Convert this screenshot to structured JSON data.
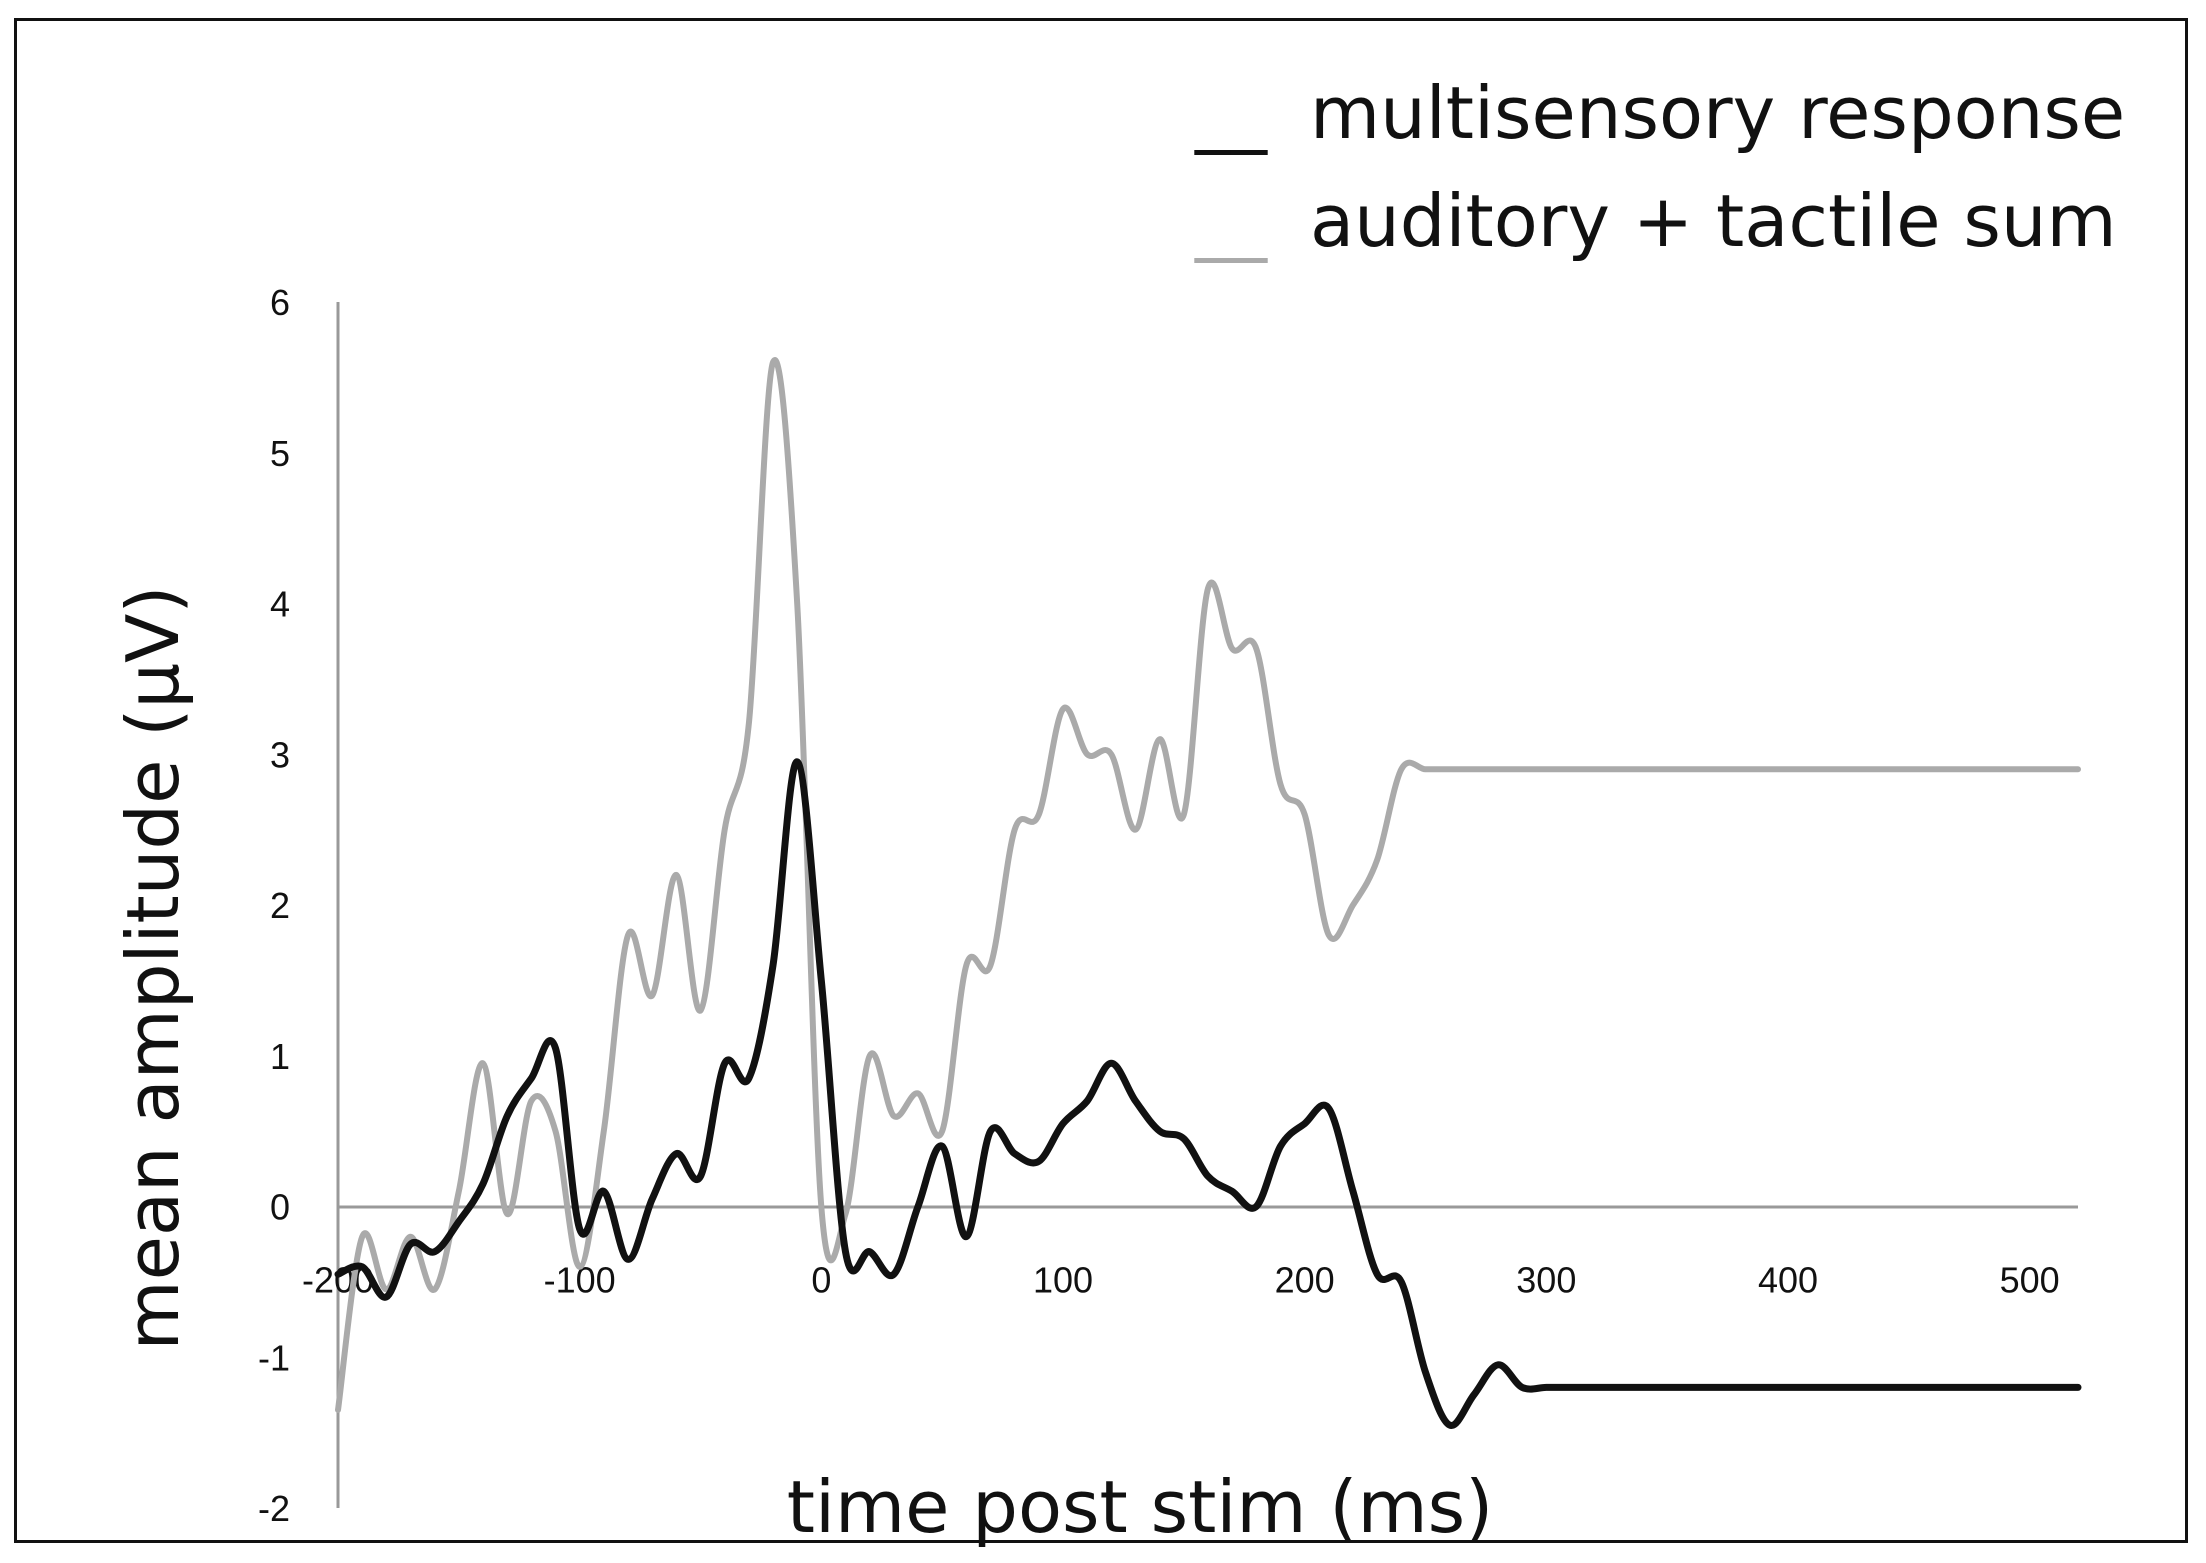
{
  "chart_data": {
    "type": "line",
    "title": "",
    "xlabel": "time post stim (ms)",
    "ylabel": "mean amplitude (μV)",
    "xlim": [
      -200,
      520
    ],
    "ylim": [
      -2,
      6
    ],
    "x_ticks": [
      "-200",
      "-100",
      "0",
      "100",
      "200",
      "300",
      "400",
      "500"
    ],
    "y_ticks": [
      "6",
      "5",
      "4",
      "3",
      "2",
      "1",
      "0",
      "-1",
      "-2"
    ],
    "grid": false,
    "legend_position": "top-right",
    "series": [
      {
        "name": "multisensory response",
        "color": "#111111",
        "marker": "__",
        "x": [
          -200,
          -190,
          -180,
          -170,
          -160,
          -150,
          -140,
          -130,
          -120,
          -110,
          -100,
          -90,
          -80,
          -70,
          -60,
          -50,
          -40,
          -30,
          -20,
          -10,
          0,
          10,
          20,
          30,
          40,
          50,
          60,
          70,
          80,
          90,
          100,
          110,
          120,
          130,
          140,
          150,
          160,
          170,
          180,
          190,
          200,
          210,
          220,
          230,
          240,
          250,
          260,
          270,
          280,
          290,
          300,
          310,
          320,
          330,
          340,
          350,
          360,
          370,
          380,
          390,
          400,
          410,
          420,
          430,
          440,
          450,
          460,
          470,
          480,
          490,
          500,
          510,
          520
        ],
        "values": [
          -0.45,
          -0.4,
          -0.6,
          -0.25,
          -0.3,
          -0.1,
          0.15,
          0.6,
          0.85,
          1.05,
          -0.15,
          0.1,
          -0.35,
          0.05,
          0.35,
          0.2,
          0.95,
          0.85,
          1.6,
          2.95,
          1.5,
          -0.3,
          -0.3,
          -0.45,
          0.0,
          0.4,
          -0.2,
          0.5,
          0.35,
          0.3,
          0.55,
          0.7,
          0.95,
          0.7,
          0.5,
          0.45,
          0.2,
          0.1,
          0.0,
          0.4,
          0.55,
          0.65,
          0.1,
          -0.45,
          -0.5,
          -1.1,
          -1.45,
          -1.25,
          -1.05,
          -1.2,
          -1.2,
          -1.2,
          -1.2,
          -1.2,
          -1.2,
          -1.2,
          -1.2,
          -1.2,
          -1.2,
          -1.2,
          -1.2,
          -1.2,
          -1.2,
          -1.2,
          -1.2,
          -1.2,
          -1.2,
          -1.2,
          -1.2,
          -1.2,
          -1.2,
          -1.2,
          -1.2
        ]
      },
      {
        "name": "auditory + tactile sum",
        "color": "#aaaaaa",
        "marker": "__",
        "x": [
          -200,
          -190,
          -180,
          -170,
          -160,
          -150,
          -140,
          -130,
          -120,
          -110,
          -100,
          -90,
          -80,
          -70,
          -60,
          -50,
          -40,
          -30,
          -20,
          -10,
          0,
          10,
          20,
          30,
          40,
          50,
          60,
          70,
          80,
          90,
          100,
          110,
          120,
          130,
          140,
          150,
          160,
          170,
          180,
          190,
          200,
          210,
          220,
          230,
          240,
          250,
          260,
          270,
          280,
          290,
          300,
          310,
          320,
          330,
          340,
          350,
          360,
          370,
          380,
          390,
          400,
          410,
          420,
          430,
          440,
          450,
          460,
          470,
          480,
          490,
          500,
          510,
          520
        ],
        "values": [
          -1.35,
          -0.2,
          -0.55,
          -0.2,
          -0.55,
          0.1,
          0.95,
          -0.05,
          0.7,
          0.5,
          -0.4,
          0.5,
          1.8,
          1.4,
          2.2,
          1.3,
          2.5,
          3.2,
          5.6,
          4.0,
          0.0,
          -0.05,
          1.0,
          0.6,
          0.75,
          0.5,
          1.6,
          1.6,
          2.5,
          2.6,
          3.3,
          3.0,
          3.0,
          2.5,
          3.1,
          2.6,
          4.1,
          3.7,
          3.7,
          2.8,
          2.6,
          1.8,
          2.0,
          2.3,
          2.9,
          2.9,
          2.9,
          2.9,
          2.9,
          2.9,
          2.9,
          2.9,
          2.9,
          2.9,
          2.9,
          2.9,
          2.9,
          2.9,
          2.9,
          2.9,
          2.9,
          2.9,
          2.9,
          2.9,
          2.9,
          2.9,
          2.9,
          2.9,
          2.9,
          2.9,
          2.9,
          2.9,
          2.9
        ]
      }
    ]
  }
}
